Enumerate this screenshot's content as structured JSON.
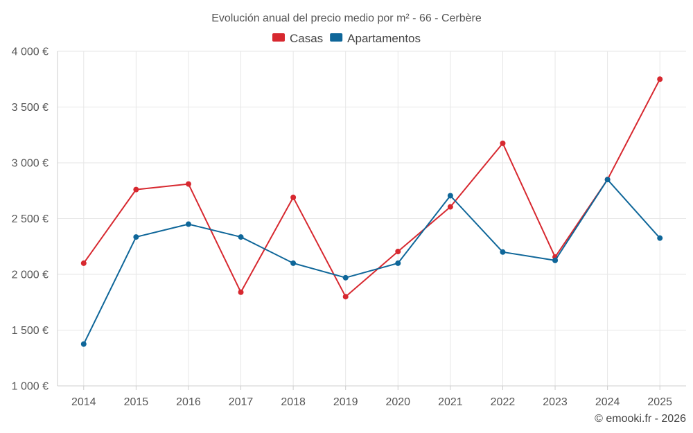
{
  "chart_data": {
    "type": "line",
    "title": "Evolución anual del precio medio por m² - 66 - Cerbère",
    "categories": [
      "2014",
      "2015",
      "2016",
      "2017",
      "2018",
      "2019",
      "2020",
      "2021",
      "2022",
      "2023",
      "2024",
      "2025"
    ],
    "series": [
      {
        "name": "Casas",
        "color": "#d7282f",
        "values": [
          2100,
          2760,
          2810,
          1840,
          2690,
          1800,
          2205,
          2605,
          3175,
          2155,
          2850,
          3750
        ]
      },
      {
        "name": "Apartamentos",
        "color": "#0e6699",
        "values": [
          1375,
          2335,
          2450,
          2335,
          2100,
          1970,
          2100,
          2705,
          2200,
          2125,
          2850,
          2325
        ]
      }
    ],
    "ylim": [
      1000,
      4000
    ],
    "yticks": [
      1000,
      1500,
      2000,
      2500,
      3000,
      3500,
      4000
    ],
    "ytick_labels": [
      "1 000 €",
      "1 500 €",
      "2 000 €",
      "2 500 €",
      "3 000 €",
      "3 500 €",
      "4 000 €"
    ],
    "xlabel": "",
    "ylabel": "",
    "grid": true,
    "legend_position": "top-center"
  },
  "credit": "© emooki.fr - 2026"
}
